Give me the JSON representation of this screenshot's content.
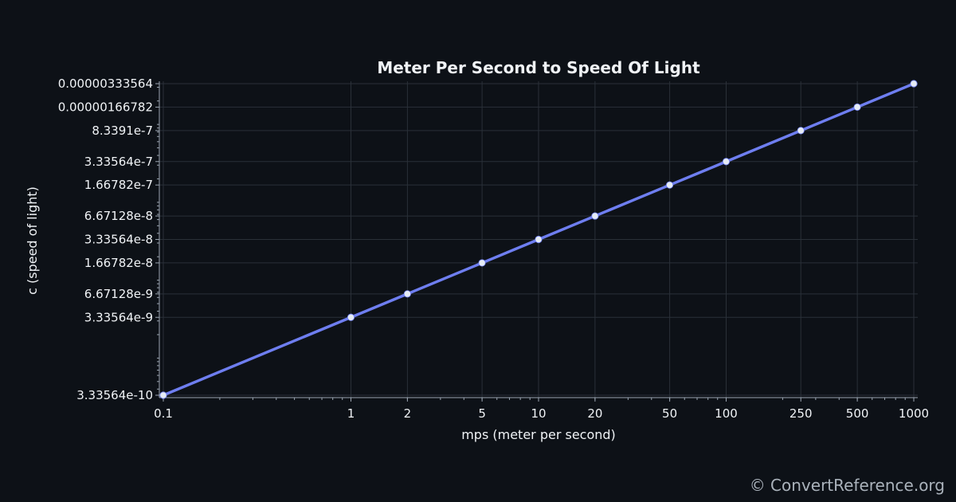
{
  "chart_data": {
    "type": "line",
    "title": "Meter Per Second to Speed Of Light",
    "xlabel": "mps (meter per second)",
    "ylabel": "c (speed of light)",
    "x_scale": "log",
    "y_scale": "log",
    "xlim": [
      0.1,
      1000
    ],
    "ylim": [
      3.33564e-10,
      3.33564e-06
    ],
    "grid": true,
    "line_color": "#6e7ef0",
    "marker_color": "#e6ecf5",
    "x_ticks": [
      {
        "value": 0.1,
        "label": "0.1"
      },
      {
        "value": 1,
        "label": "1"
      },
      {
        "value": 2,
        "label": "2"
      },
      {
        "value": 5,
        "label": "5"
      },
      {
        "value": 10,
        "label": "10"
      },
      {
        "value": 20,
        "label": "20"
      },
      {
        "value": 50,
        "label": "50"
      },
      {
        "value": 100,
        "label": "100"
      },
      {
        "value": 250,
        "label": "250"
      },
      {
        "value": 500,
        "label": "500"
      },
      {
        "value": 1000,
        "label": "1000"
      }
    ],
    "y_ticks": [
      {
        "value": 3.33564e-10,
        "label": "3.33564e-10"
      },
      {
        "value": 3.33564e-09,
        "label": "3.33564e-9"
      },
      {
        "value": 6.67128e-09,
        "label": "6.67128e-9"
      },
      {
        "value": 1.66782e-08,
        "label": "1.66782e-8"
      },
      {
        "value": 3.33564e-08,
        "label": "3.33564e-8"
      },
      {
        "value": 6.67128e-08,
        "label": "6.67128e-8"
      },
      {
        "value": 1.66782e-07,
        "label": "1.66782e-7"
      },
      {
        "value": 3.33564e-07,
        "label": "3.33564e-7"
      },
      {
        "value": 8.3391e-07,
        "label": "8.3391e-7"
      },
      {
        "value": 1.66782e-06,
        "label": "0.00000166782"
      },
      {
        "value": 3.33564e-06,
        "label": "0.00000333564"
      }
    ],
    "series": [
      {
        "x": [
          0.1,
          1,
          2,
          5,
          10,
          20,
          50,
          100,
          250,
          500,
          1000
        ],
        "y": [
          3.33564e-10,
          3.33564e-09,
          6.67128e-09,
          1.66782e-08,
          3.33564e-08,
          6.67128e-08,
          1.66782e-07,
          3.33564e-07,
          8.3391e-07,
          1.66782e-06,
          3.33564e-06
        ]
      }
    ]
  },
  "credit": "© ConvertReference.org"
}
